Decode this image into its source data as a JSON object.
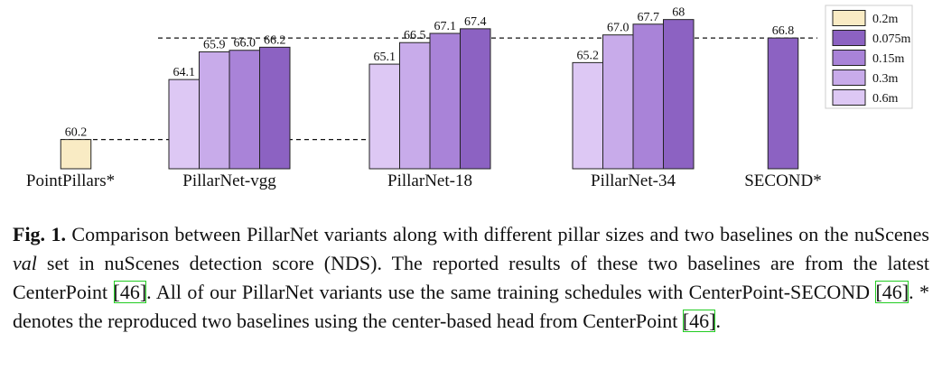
{
  "chart_data": {
    "type": "bar",
    "categories": [
      "PointPillars*",
      "PillarNet-vgg",
      "PillarNet-18",
      "PillarNet-34",
      "SECOND*"
    ],
    "series": [
      {
        "name": "0.2m",
        "color": "#f9ebc4",
        "values": [
          60.2,
          null,
          null,
          null,
          null
        ]
      },
      {
        "name": "0.075m",
        "color": "#8c62c2",
        "values": [
          null,
          66.2,
          67.4,
          68,
          66.8
        ]
      },
      {
        "name": "0.15m",
        "color": "#a983d8",
        "values": [
          null,
          66.0,
          67.1,
          67.7,
          null
        ],
        "value_labels": [
          null,
          "66.0",
          "67.1",
          "67.7",
          null
        ]
      },
      {
        "name": "0.3m",
        "color": "#c8abea",
        "values": [
          null,
          65.9,
          66.5,
          67.0,
          null
        ],
        "value_labels": [
          null,
          "65.9",
          "66.5",
          "67.0",
          null
        ]
      },
      {
        "name": "0.6m",
        "color": "#ddc8f4",
        "values": [
          null,
          64.1,
          65.1,
          65.2,
          null
        ]
      }
    ],
    "ylim": [
      58.3,
      69.27
    ]
  },
  "caption": {
    "label": "Fig. 1.",
    "parts": [
      "Comparison between PillarNet variants along with different pillar sizes and two baselines on the nuScenes ",
      "val",
      " set in nuScenes detection score (NDS). The reported results of these two baselines are from the latest CenterPoint ",
      "[46]",
      ". All of our PillarNet variants use the same training schedules with CenterPoint-SECOND ",
      "[46]",
      ". * denotes the reproduced two baselines using the center-based head from CenterPoint ",
      "[46]",
      "."
    ]
  }
}
